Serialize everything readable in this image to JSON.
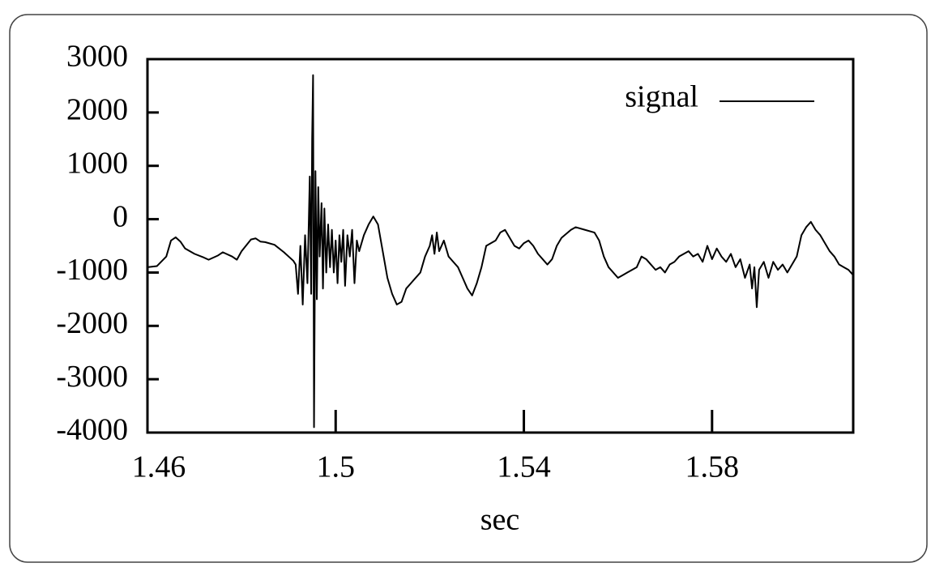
{
  "chart_data": {
    "type": "line",
    "x_label": "sec",
    "xlim": [
      1.46,
      1.61
    ],
    "ylim": [
      -4000,
      3000
    ],
    "xticks": [
      1.46,
      1.5,
      1.54,
      1.58
    ],
    "yticks": [
      -4000,
      -3000,
      -2000,
      -1000,
      0,
      1000,
      2000,
      3000
    ],
    "legend": "upper right",
    "grid": false,
    "x": [
      1.46,
      1.462,
      1.464,
      1.465,
      1.466,
      1.467,
      1.468,
      1.47,
      1.472,
      1.473,
      1.475,
      1.476,
      1.478,
      1.479,
      1.48,
      1.482,
      1.483,
      1.484,
      1.485,
      1.487,
      1.489,
      1.491,
      1.4915,
      1.492,
      1.4925,
      1.493,
      1.4935,
      1.494,
      1.4945,
      1.4948,
      1.495,
      1.4952,
      1.4954,
      1.4957,
      1.496,
      1.4963,
      1.4966,
      1.497,
      1.4973,
      1.4976,
      1.498,
      1.4984,
      1.4988,
      1.4992,
      1.4996,
      1.5,
      1.5004,
      1.5008,
      1.5012,
      1.5016,
      1.502,
      1.5025,
      1.503,
      1.5035,
      1.504,
      1.5045,
      1.505,
      1.506,
      1.507,
      1.508,
      1.509,
      1.51,
      1.511,
      1.512,
      1.513,
      1.514,
      1.515,
      1.516,
      1.518,
      1.519,
      1.52,
      1.5205,
      1.521,
      1.5215,
      1.522,
      1.523,
      1.524,
      1.525,
      1.526,
      1.527,
      1.528,
      1.529,
      1.53,
      1.531,
      1.532,
      1.534,
      1.535,
      1.536,
      1.537,
      1.538,
      1.539,
      1.54,
      1.541,
      1.542,
      1.543,
      1.545,
      1.546,
      1.547,
      1.548,
      1.55,
      1.551,
      1.553,
      1.555,
      1.556,
      1.557,
      1.558,
      1.56,
      1.561,
      1.562,
      1.564,
      1.565,
      1.566,
      1.567,
      1.568,
      1.569,
      1.57,
      1.571,
      1.572,
      1.573,
      1.574,
      1.575,
      1.576,
      1.577,
      1.578,
      1.579,
      1.58,
      1.581,
      1.582,
      1.583,
      1.584,
      1.585,
      1.586,
      1.587,
      1.588,
      1.5885,
      1.589,
      1.5895,
      1.59,
      1.591,
      1.592,
      1.593,
      1.594,
      1.595,
      1.596,
      1.597,
      1.598,
      1.599,
      1.6,
      1.601,
      1.602,
      1.603,
      1.604,
      1.605,
      1.606,
      1.607,
      1.608,
      1.609,
      1.61
    ],
    "series": [
      {
        "name": "signal",
        "color": "#000000",
        "values": [
          -900,
          -880,
          -700,
          -400,
          -340,
          -420,
          -550,
          -650,
          -720,
          -760,
          -680,
          -620,
          -700,
          -760,
          -600,
          -380,
          -360,
          -420,
          -430,
          -480,
          -620,
          -780,
          -850,
          -1400,
          -500,
          -1600,
          -300,
          -1200,
          800,
          -1400,
          1500,
          2700,
          -3900,
          900,
          -1500,
          600,
          -700,
          300,
          -1300,
          200,
          -1000,
          -100,
          -900,
          -200,
          -1000,
          -400,
          -1200,
          -300,
          -800,
          -200,
          -1250,
          -300,
          -700,
          -200,
          -1200,
          -400,
          -600,
          -300,
          -100,
          50,
          -100,
          -600,
          -1100,
          -1400,
          -1600,
          -1550,
          -1300,
          -1200,
          -1000,
          -700,
          -500,
          -300,
          -650,
          -250,
          -600,
          -400,
          -700,
          -800,
          -900,
          -1100,
          -1300,
          -1430,
          -1200,
          -900,
          -500,
          -400,
          -250,
          -200,
          -350,
          -500,
          -550,
          -450,
          -400,
          -500,
          -650,
          -850,
          -750,
          -500,
          -350,
          -200,
          -150,
          -200,
          -250,
          -400,
          -700,
          -900,
          -1100,
          -1050,
          -1000,
          -900,
          -700,
          -750,
          -850,
          -950,
          -900,
          -1000,
          -850,
          -800,
          -700,
          -650,
          -600,
          -700,
          -650,
          -800,
          -500,
          -750,
          -550,
          -700,
          -800,
          -650,
          -900,
          -750,
          -1100,
          -850,
          -1300,
          -900,
          -1650,
          -950,
          -800,
          -1100,
          -800,
          -950,
          -850,
          -1000,
          -850,
          -700,
          -300,
          -150,
          -50,
          -200,
          -300,
          -450,
          -600,
          -700,
          -850,
          -900,
          -950,
          -1050
        ]
      }
    ]
  }
}
